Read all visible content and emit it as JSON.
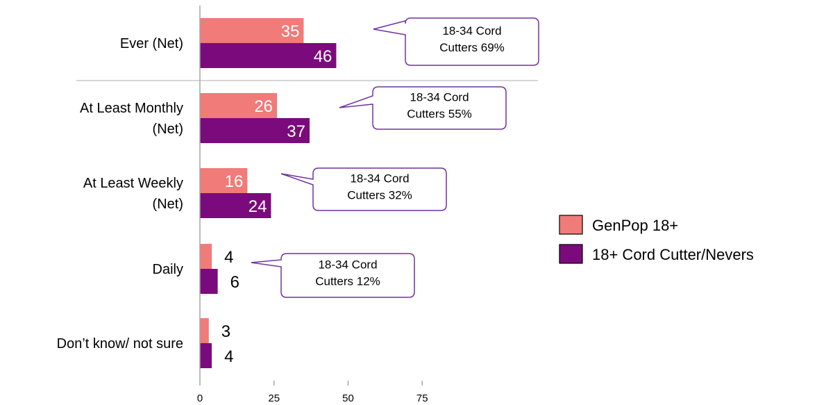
{
  "chart_data": {
    "type": "bar",
    "orientation": "horizontal",
    "categories": [
      [
        "Ever (Net)"
      ],
      [
        "At Least Monthly",
        "(Net)"
      ],
      [
        "At Least Weekly",
        "(Net)"
      ],
      [
        "Daily"
      ],
      [
        "Don’t know/ not sure"
      ]
    ],
    "series": [
      {
        "name": "GenPop 18+",
        "color": "#f07b79",
        "values": [
          35,
          26,
          16,
          4,
          3
        ]
      },
      {
        "name": "18+ Cord Cutter/Nevers",
        "color": "#7b0b7c",
        "values": [
          46,
          37,
          24,
          6,
          4
        ]
      }
    ],
    "xlim": [
      0,
      75
    ],
    "xticks": [
      0,
      25,
      50,
      75
    ],
    "grid": false,
    "legend": "right",
    "callouts": [
      {
        "lines": [
          "18-34 Cord",
          "Cutters 69%"
        ]
      },
      {
        "lines": [
          "18-34 Cord",
          "Cutters 55%"
        ]
      },
      {
        "lines": [
          "18-34 Cord",
          "Cutters 32%"
        ]
      },
      {
        "lines": [
          "18-34 Cord",
          "Cutters 12%"
        ]
      }
    ],
    "callout_border_color": "#7030a0"
  }
}
